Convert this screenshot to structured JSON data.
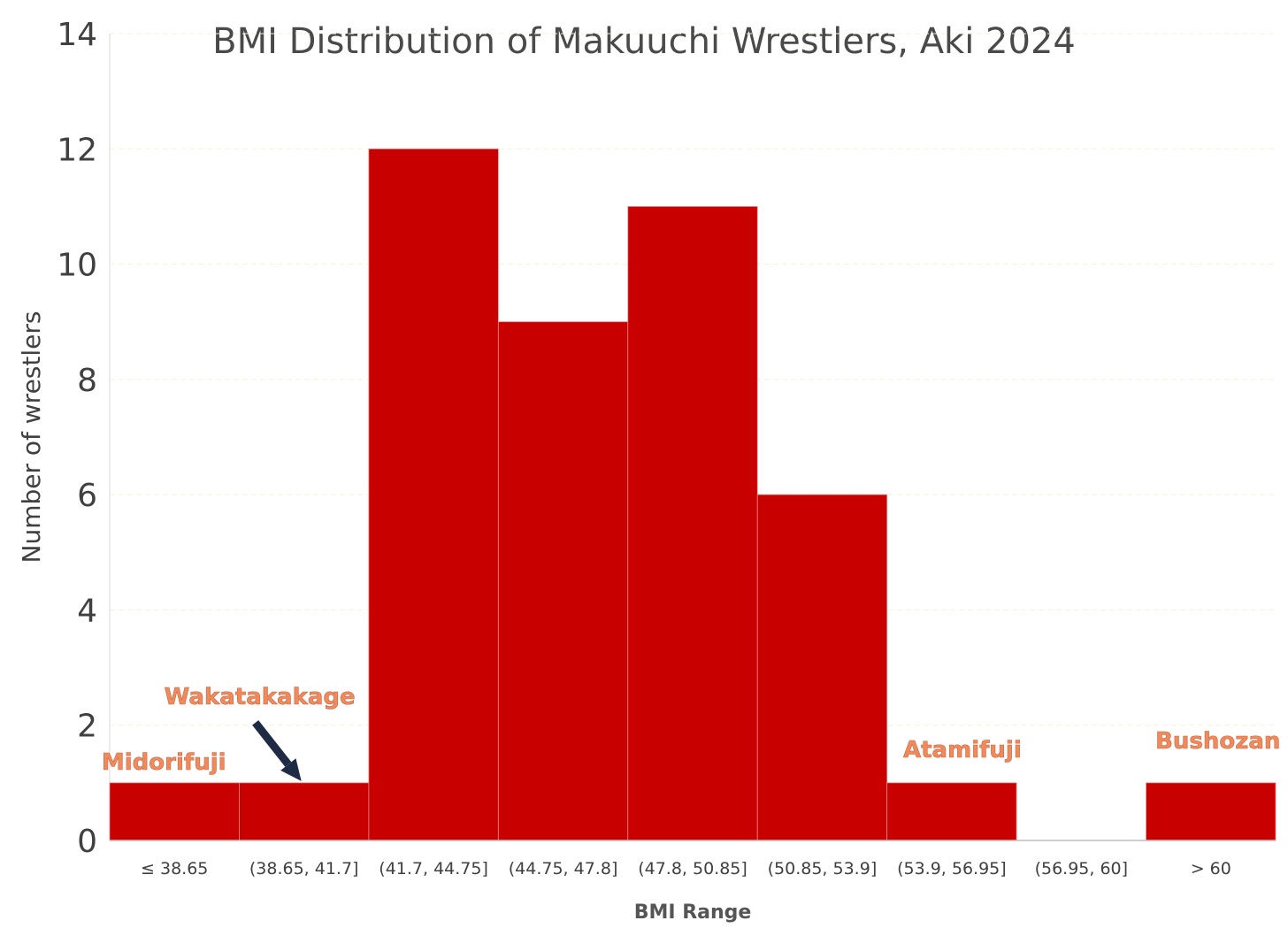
{
  "chart_data": {
    "type": "bar",
    "title": "BMI Distribution of Makuuchi Wrestlers, Aki 2024",
    "xlabel": "BMI Range",
    "ylabel": "Number of wrestlers",
    "categories": [
      "≤ 38.65",
      "(38.65, 41.7]",
      "(41.7, 44.75]",
      "(44.75, 47.8]",
      "(47.8, 50.85]",
      "(50.85, 53.9]",
      "(53.9, 56.95]",
      "(56.95, 60]",
      "> 60"
    ],
    "values": [
      1,
      1,
      12,
      9,
      11,
      6,
      1,
      0,
      1
    ],
    "ylim": [
      0,
      14
    ],
    "yticks": [
      0,
      2,
      4,
      6,
      8,
      10,
      12,
      14
    ],
    "grid": true,
    "bar_color": "#c80000",
    "annotations": [
      {
        "text": "Midorifuji",
        "category": "≤ 38.65"
      },
      {
        "text": "Wakatakakage",
        "category": "(38.65, 41.7]",
        "arrow": true
      },
      {
        "text": "Atamifuji",
        "category": "(53.9, 56.95]"
      },
      {
        "text": "Bushozan",
        "category": "> 60"
      }
    ],
    "annotation_color": "#f08a5d",
    "arrow_color": "#1f2a44"
  }
}
